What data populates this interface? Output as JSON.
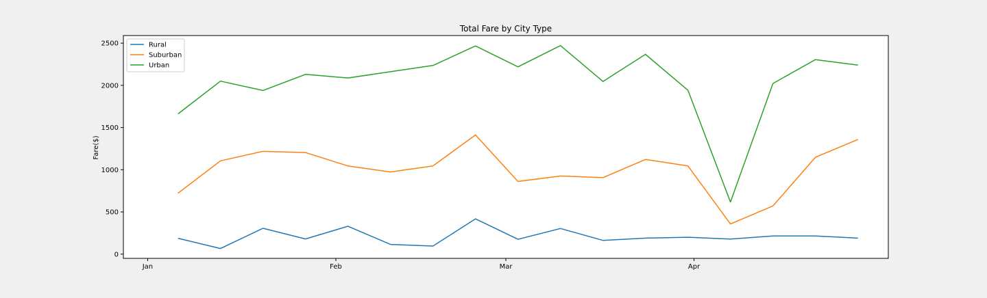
{
  "chart_data": {
    "type": "line",
    "title": "Total Fare by City Type",
    "xlabel": "",
    "ylabel": "Fare($)",
    "x": [
      "2019-01-06",
      "2019-01-13",
      "2019-01-20",
      "2019-01-27",
      "2019-02-03",
      "2019-02-10",
      "2019-02-17",
      "2019-02-24",
      "2019-03-03",
      "2019-03-10",
      "2019-03-17",
      "2019-03-24",
      "2019-03-31",
      "2019-04-07",
      "2019-04-14",
      "2019-04-21",
      "2019-04-28"
    ],
    "x_ticks": [
      {
        "date": "2019-01-01",
        "label": "Jan"
      },
      {
        "date": "2019-02-01",
        "label": "Feb"
      },
      {
        "date": "2019-03-01",
        "label": "Mar"
      },
      {
        "date": "2019-04-01",
        "label": "Apr"
      }
    ],
    "xlim": [
      "2018-12-28",
      "2019-05-03"
    ],
    "ylim": [
      -50,
      2590
    ],
    "y_ticks": [
      0,
      500,
      1000,
      1500,
      2000,
      2500
    ],
    "grid": false,
    "legend_position": "upper left",
    "series": [
      {
        "name": "Rural",
        "color": "#1f77b4",
        "values": [
          188,
          67,
          306,
          180,
          331,
          115,
          96,
          418,
          176,
          304,
          163,
          190,
          200,
          178,
          215,
          215,
          190
        ]
      },
      {
        "name": "Suburban",
        "color": "#ff7f0e",
        "values": [
          722,
          1106,
          1218,
          1204,
          1045,
          974,
          1046,
          1412,
          861,
          926,
          906,
          1122,
          1045,
          357,
          571,
          1148,
          1358
        ]
      },
      {
        "name": "Urban",
        "color": "#2ca02c",
        "values": [
          1662,
          2050,
          1939,
          2130,
          2087,
          2162,
          2235,
          2467,
          2219,
          2471,
          2046,
          2367,
          1941,
          617,
          2022,
          2305,
          2240
        ]
      }
    ]
  }
}
